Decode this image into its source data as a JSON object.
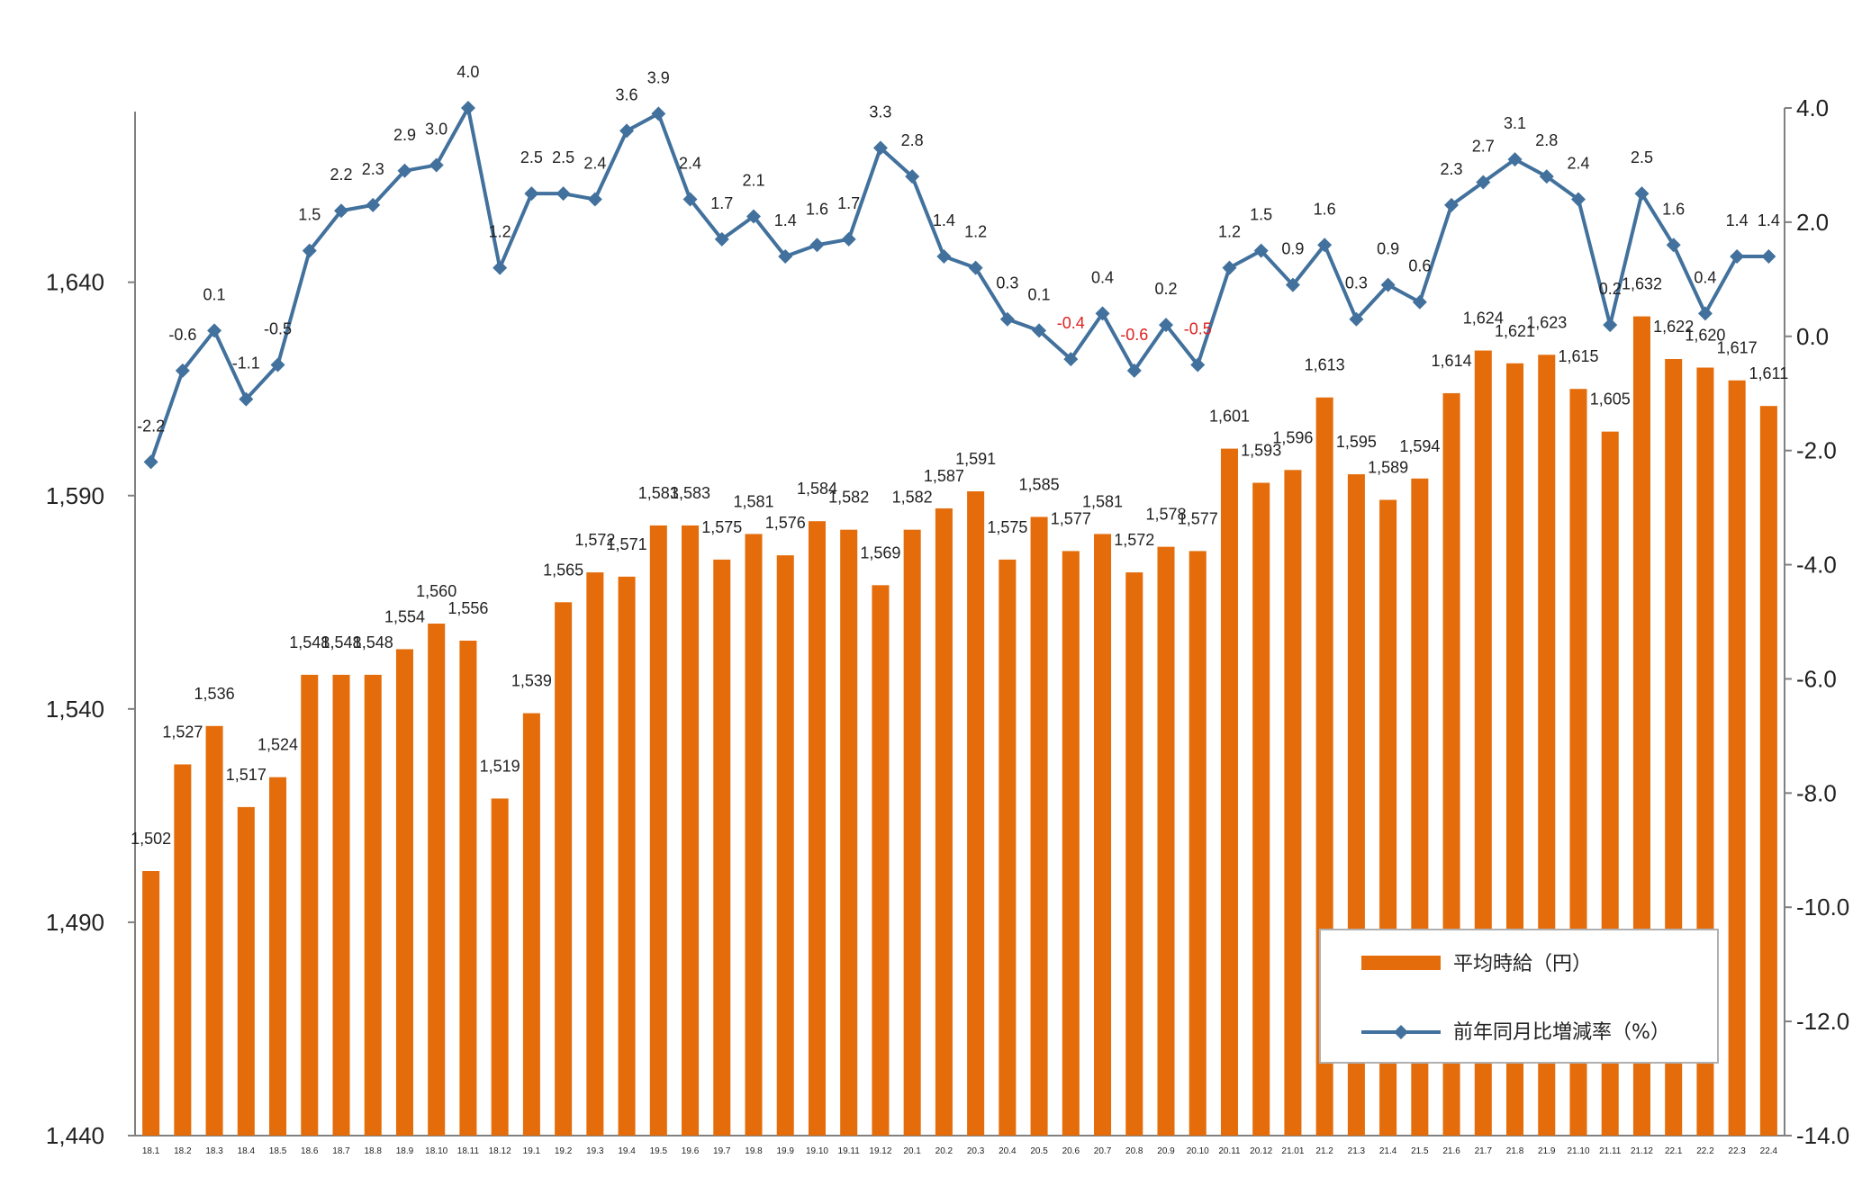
{
  "chart_data": {
    "type": "bar",
    "categories": [
      "18.1",
      "18.2",
      "18.3",
      "18.4",
      "18.5",
      "18.6",
      "18.7",
      "18.8",
      "18.9",
      "18.10",
      "18.11",
      "18.12",
      "19.1",
      "19.2",
      "19.3",
      "19.4",
      "19.5",
      "19.6",
      "19.7",
      "19.8",
      "19.9",
      "19.10",
      "19.11",
      "19.12",
      "20.1",
      "20.2",
      "20.3",
      "20.4",
      "20.5",
      "20.6",
      "20.7",
      "20.8",
      "20.9",
      "20.10",
      "20.11",
      "20.12",
      "21.01",
      "21.2",
      "21.3",
      "21.4",
      "21.5",
      "21.6",
      "21.7",
      "21.8",
      "21.9",
      "21.10",
      "21.11",
      "21.12",
      "22.1",
      "22.2",
      "22.3",
      "22.4"
    ],
    "series": [
      {
        "name": "平均時給（円）",
        "type": "bar",
        "axis": "left",
        "color": "#E46C0A",
        "values": [
          1502,
          1527,
          1536,
          1517,
          1524,
          1548,
          1548,
          1548,
          1554,
          1560,
          1556,
          1519,
          1539,
          1565,
          1572,
          1571,
          1583,
          1583,
          1575,
          1581,
          1576,
          1584,
          1582,
          1569,
          1582,
          1587,
          1591,
          1575,
          1585,
          1577,
          1581,
          1572,
          1578,
          1577,
          1601,
          1593,
          1596,
          1613,
          1595,
          1589,
          1594,
          1614,
          1624,
          1621,
          1623,
          1615,
          1605,
          1632,
          1622,
          1620,
          1617,
          1611
        ],
        "labels": [
          "1,502",
          "1,527",
          "1,536",
          "1,517",
          "1,524",
          "1,548",
          "1,548",
          "1,548",
          "1,554",
          "1,560",
          "1,556",
          "1,519",
          "1,539",
          "1,565",
          "1,572",
          "1,571",
          "1,583",
          "1,583",
          "1,575",
          "1,581",
          "1,576",
          "1,584",
          "1,582",
          "1,569",
          "1,582",
          "1,587",
          "1,591",
          "1,575",
          "1,585",
          "1,577",
          "1,581",
          "1,572",
          "1,578",
          "1,577",
          "1,601",
          "1,593",
          "1,596",
          "1,613",
          "1,595",
          "1,589",
          "1,594",
          "1,614",
          "1,624",
          "1,621",
          "1,623",
          "1,615",
          "1,605",
          "1,632",
          "1,622",
          "1,620",
          "1,617",
          "1,611"
        ]
      },
      {
        "name": "前年同月比増減率（%）",
        "type": "line",
        "axis": "right",
        "color": "#41719C",
        "negative_label_color": "#E02020",
        "values": [
          -2.2,
          -0.6,
          0.1,
          -1.1,
          -0.5,
          1.5,
          2.2,
          2.3,
          2.9,
          3.0,
          4.0,
          1.2,
          2.5,
          2.5,
          2.4,
          3.6,
          3.9,
          2.4,
          1.7,
          2.1,
          1.4,
          1.6,
          1.7,
          3.3,
          2.8,
          1.4,
          1.2,
          0.3,
          0.1,
          -0.4,
          0.4,
          -0.6,
          0.2,
          -0.5,
          1.2,
          1.5,
          0.9,
          1.6,
          0.3,
          0.9,
          0.6,
          2.3,
          2.7,
          3.1,
          2.8,
          2.4,
          0.2,
          2.5,
          1.6,
          0.4,
          1.4,
          1.4
        ],
        "labels": [
          "-2.2",
          "-0.6",
          "0.1",
          "-1.1",
          "-0.5",
          "1.5",
          "2.2",
          "2.3",
          "2.9",
          "3.0",
          "4.0",
          "1.2",
          "2.5",
          "2.5",
          "2.4",
          "3.6",
          "3.9",
          "2.4",
          "1.7",
          "2.1",
          "1.4",
          "1.6",
          "1.7",
          "3.3",
          "2.8",
          "1.4",
          "1.2",
          "0.3",
          "0.1",
          "-0.4",
          "0.4",
          "-0.6",
          "0.2",
          "-0.5",
          "1.2",
          "1.5",
          "0.9",
          "1.6",
          "0.3",
          "0.9",
          "0.6",
          "2.3",
          "2.7",
          "3.1",
          "2.8",
          "2.4",
          "0.2",
          "2.5",
          "1.6",
          "0.4",
          "1.4",
          "1.4"
        ]
      }
    ],
    "left_axis": {
      "range": [
        1440,
        1680
      ],
      "ticks": [
        1440,
        1490,
        1540,
        1590,
        1640
      ],
      "tick_labels": [
        "1,440",
        "1,490",
        "1,540",
        "1,590",
        "1,640"
      ]
    },
    "right_axis": {
      "range": [
        -14.0,
        4.0
      ],
      "ticks": [
        -14,
        -12,
        -10,
        -8,
        -6,
        -4,
        -2,
        0,
        2,
        4
      ],
      "tick_labels": [
        "-14.0",
        "-12.0",
        "-10.0",
        "-8.0",
        "-6.0",
        "-4.0",
        "-2.0",
        "0.0",
        "2.0",
        "4.0"
      ]
    },
    "title": "",
    "xlabel": "",
    "ylabel": "",
    "grid": false,
    "legend": {
      "position": "bottom-right",
      "entries": [
        "平均時給（円）",
        "前年同月比増減率（%）"
      ]
    }
  }
}
